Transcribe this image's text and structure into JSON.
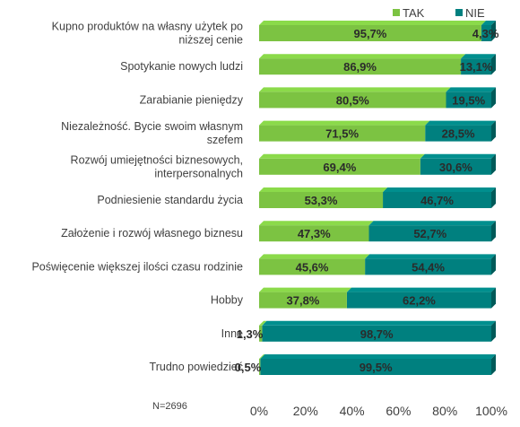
{
  "chart_data": {
    "type": "bar",
    "orientation": "horizontal",
    "stacked": true,
    "categories": [
      [
        "Kupno produktów na własny użytek po",
        "niższej cenie"
      ],
      [
        "Spotykanie nowych ludzi"
      ],
      [
        "Zarabianie pieniędzy"
      ],
      [
        "Niezależność. Bycie swoim własnym",
        "szefem"
      ],
      [
        "Rozwój umiejętności biznesowych,",
        "interpersonalnych"
      ],
      [
        "Podniesienie standardu życia"
      ],
      [
        "Założenie i rozwój własnego biznesu"
      ],
      [
        "Poświęcenie większej ilości czasu rodzinie"
      ],
      [
        "Hobby"
      ],
      [
        "Inne"
      ],
      [
        "Trudno powiedzieć"
      ]
    ],
    "series": [
      {
        "name": "TAK",
        "color": "#7cc342",
        "values": [
          95.7,
          86.9,
          80.5,
          71.5,
          69.4,
          53.3,
          47.3,
          45.6,
          37.8,
          1.3,
          0.5
        ],
        "labels": [
          "95,7%",
          "86,9%",
          "80,5%",
          "71,5%",
          "69,4%",
          "53,3%",
          "47,3%",
          "45,6%",
          "37,8%",
          "1,3%",
          "0,5%"
        ]
      },
      {
        "name": "NIE",
        "color": "#00807f",
        "values": [
          4.3,
          13.1,
          19.5,
          28.5,
          30.6,
          46.7,
          52.7,
          54.4,
          62.2,
          98.7,
          99.5
        ],
        "labels": [
          "4,3%",
          "13,1%",
          "19,5%",
          "28,5%",
          "30,6%",
          "46,7%",
          "52,7%",
          "54,4%",
          "62,2%",
          "98,7%",
          "99,5%"
        ]
      }
    ],
    "xlim": [
      0,
      100
    ],
    "x_ticks": [
      "0%",
      "20%",
      "40%",
      "60%",
      "80%",
      "100%"
    ],
    "x_tick_values": [
      0,
      20,
      40,
      60,
      80,
      100
    ],
    "legend_position": "top-right",
    "grid": false,
    "three_d": true,
    "note": "N=2696"
  }
}
